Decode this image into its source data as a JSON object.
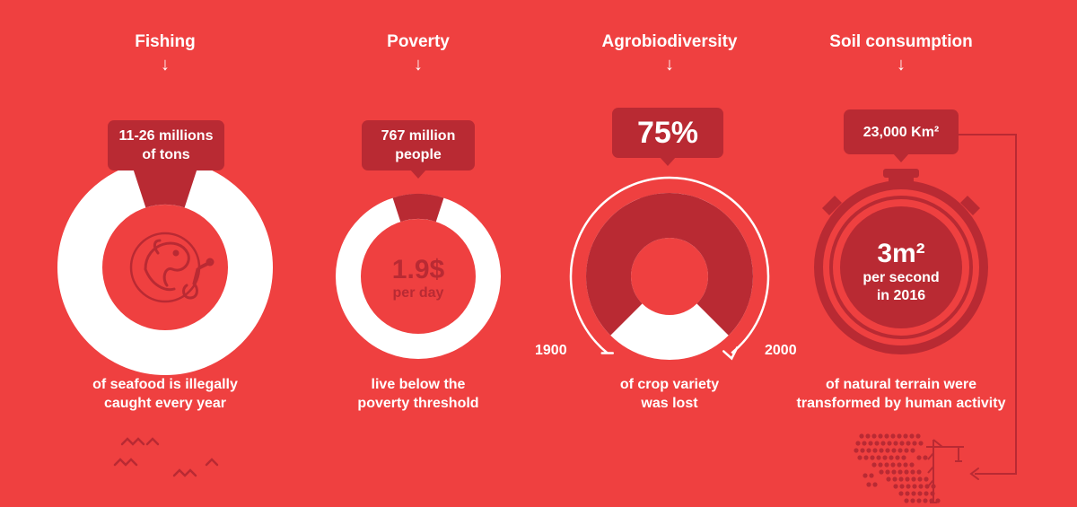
{
  "colors": {
    "background": "#ef4040",
    "dark": "#b92a33",
    "light": "#ffffff"
  },
  "panels": [
    {
      "title": "Fishing",
      "arrow": "↓",
      "callout": [
        "11-26 millions",
        "of tons"
      ],
      "share": 0.1,
      "icon": "fish-hook-icon",
      "desc": [
        "of seafood is illegally",
        "caught every year"
      ]
    },
    {
      "title": "Poverty",
      "arrow": "↓",
      "callout": [
        "767 million",
        "people"
      ],
      "share": 0.1,
      "center": {
        "main": "1.9$",
        "sub": "per day"
      },
      "desc": [
        "live below the",
        "poverty threshold"
      ]
    },
    {
      "title": "Agrobiodiversity",
      "arrow": "↓",
      "callout": [
        "75%"
      ],
      "share": 0.75,
      "start_year": "1900",
      "end_year": "2000",
      "desc": [
        "of crop variety",
        "was lost"
      ]
    },
    {
      "title": "Soil consumption",
      "arrow": "↓",
      "callout": [
        "23,000 Km²"
      ],
      "center": {
        "main": "3m²",
        "sub1": "per second",
        "sub2": "in 2016"
      },
      "icon": "stopwatch-icon",
      "desc": [
        "of natural terrain were",
        "transformed by human activity"
      ]
    }
  ]
}
